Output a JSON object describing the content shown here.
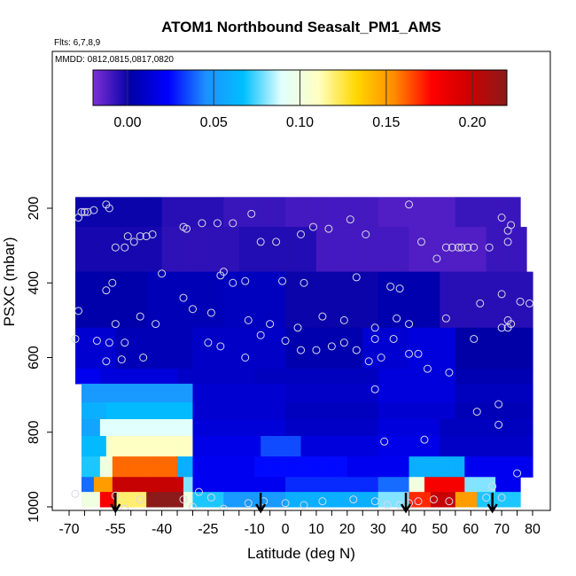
{
  "chart_data": {
    "type": "heatmap",
    "title": "ATOM1 Northbound Seasalt_PM1_AMS",
    "subtitle_flights": "Flts: 6,7,8,9",
    "subtitle_dates": "MMDD: 0812,0815,0817,0820",
    "xlabel": "Latitude (deg N)",
    "ylabel": "PSXC (mbar)",
    "xlim": [
      -70,
      80
    ],
    "ylim": [
      1000,
      100
    ],
    "x_tick_labels": [
      "-70",
      "-55",
      "-40",
      "-25",
      "-10",
      "0",
      "10",
      "20",
      "30",
      "40",
      "50",
      "60",
      "70",
      "80"
    ],
    "x_tick_values": [
      -70,
      -55,
      -40,
      -25,
      -10,
      0,
      10,
      20,
      30,
      40,
      50,
      60,
      70,
      80
    ],
    "x_minor_tick_step": 5,
    "y_tick_labels": [
      "200",
      "400",
      "600",
      "800",
      "1000"
    ],
    "y_tick_values": [
      200,
      400,
      600,
      800,
      1000
    ],
    "colorbar": {
      "range": [
        -0.02,
        0.22
      ],
      "tick_labels": [
        "0.00",
        "0.05",
        "0.10",
        "0.15",
        "0.20"
      ],
      "tick_values": [
        0.0,
        0.05,
        0.1,
        0.15,
        0.2
      ],
      "colors": [
        "#7f2fd6",
        "#0000a6",
        "#0000ff",
        "#1e90ff",
        "#00bfff",
        "#e0ffff",
        "#ffffc0",
        "#ffd700",
        "#ff8c00",
        "#ff0000",
        "#cd0000",
        "#8b1a1a"
      ]
    },
    "layers": [
      {
        "p_top": 170,
        "p_bot": 250,
        "x0": -68,
        "x1": 76,
        "segments": [
          [
            -68,
            -40,
            0.0
          ],
          [
            -40,
            -20,
            -0.005
          ],
          [
            -20,
            0,
            -0.008
          ],
          [
            0,
            30,
            -0.01
          ],
          [
            30,
            55,
            -0.012
          ],
          [
            55,
            76,
            -0.008
          ]
        ]
      },
      {
        "p_top": 250,
        "p_bot": 370,
        "x0": -68,
        "x1": 78,
        "segments": [
          [
            -68,
            -40,
            -0.002
          ],
          [
            -40,
            -15,
            -0.006
          ],
          [
            -15,
            10,
            -0.004
          ],
          [
            10,
            40,
            -0.01
          ],
          [
            40,
            65,
            -0.012
          ],
          [
            65,
            78,
            -0.008
          ]
        ]
      },
      {
        "p_top": 370,
        "p_bot": 520,
        "x0": -68,
        "x1": 80,
        "segments": [
          [
            -68,
            -45,
            0.003
          ],
          [
            -45,
            -20,
            0.006
          ],
          [
            -20,
            0,
            0.008
          ],
          [
            0,
            30,
            0.0
          ],
          [
            30,
            50,
            0.004
          ],
          [
            50,
            80,
            -0.005
          ]
        ]
      },
      {
        "p_top": 520,
        "p_bot": 630,
        "x0": -68,
        "x1": 80,
        "segments": [
          [
            -68,
            -55,
            0.012
          ],
          [
            -55,
            -30,
            0.006
          ],
          [
            -30,
            0,
            0.01
          ],
          [
            0,
            25,
            0.004
          ],
          [
            25,
            40,
            0.012
          ],
          [
            40,
            55,
            0.015
          ],
          [
            55,
            80,
            0.002
          ]
        ]
      },
      {
        "p_top": 630,
        "p_bot": 670,
        "x0": -68,
        "x1": 80,
        "segments": [
          [
            -68,
            -60,
            0.02
          ],
          [
            -60,
            -35,
            0.015
          ],
          [
            -35,
            -10,
            0.01
          ],
          [
            -10,
            30,
            0.008
          ],
          [
            30,
            55,
            0.015
          ],
          [
            55,
            80,
            0.005
          ]
        ]
      },
      {
        "p_top": 670,
        "p_bot": 720,
        "x0": -66,
        "x1": 80,
        "segments": [
          [
            -66,
            -30,
            0.05
          ],
          [
            -30,
            0,
            0.012
          ],
          [
            0,
            30,
            0.01
          ],
          [
            30,
            55,
            0.015
          ],
          [
            55,
            80,
            0.008
          ]
        ]
      },
      {
        "p_top": 720,
        "p_bot": 765,
        "x0": -66,
        "x1": 80,
        "segments": [
          [
            -66,
            -58,
            0.06
          ],
          [
            -58,
            -30,
            0.065
          ],
          [
            -30,
            0,
            0.012
          ],
          [
            0,
            30,
            0.008
          ],
          [
            30,
            55,
            0.012
          ],
          [
            55,
            80,
            0.006
          ]
        ]
      },
      {
        "p_top": 765,
        "p_bot": 810,
        "x0": -66,
        "x1": 80,
        "segments": [
          [
            -66,
            -60,
            0.055
          ],
          [
            -60,
            -30,
            0.09
          ],
          [
            -30,
            0,
            0.014
          ],
          [
            0,
            30,
            0.01
          ],
          [
            30,
            50,
            0.015
          ],
          [
            50,
            80,
            0.008
          ]
        ]
      },
      {
        "p_top": 810,
        "p_bot": 865,
        "x0": -66,
        "x1": 80,
        "segments": [
          [
            -66,
            -58,
            0.065
          ],
          [
            -58,
            -30,
            0.11
          ],
          [
            -30,
            -8,
            0.018
          ],
          [
            -8,
            5,
            0.035
          ],
          [
            5,
            30,
            0.015
          ],
          [
            30,
            50,
            0.018
          ],
          [
            50,
            80,
            0.01
          ]
        ]
      },
      {
        "p_top": 865,
        "p_bot": 920,
        "x0": -66,
        "x1": 80,
        "segments": [
          [
            -66,
            -60,
            0.07
          ],
          [
            -60,
            -56,
            0.1
          ],
          [
            -56,
            -35,
            0.16
          ],
          [
            -35,
            -30,
            0.06
          ],
          [
            -30,
            -10,
            0.02
          ],
          [
            -10,
            20,
            0.025
          ],
          [
            20,
            40,
            0.02
          ],
          [
            40,
            58,
            0.06
          ],
          [
            58,
            80,
            0.02
          ]
        ]
      },
      {
        "p_top": 920,
        "p_bot": 960,
        "x0": -66,
        "x1": 76,
        "segments": [
          [
            -66,
            -62,
            0.04
          ],
          [
            -62,
            -56,
            0.15
          ],
          [
            -56,
            -33,
            0.2
          ],
          [
            -33,
            -30,
            0.08
          ],
          [
            -30,
            0,
            0.02
          ],
          [
            0,
            30,
            0.03
          ],
          [
            30,
            40,
            0.04
          ],
          [
            40,
            45,
            0.1
          ],
          [
            45,
            58,
            0.18
          ],
          [
            58,
            68,
            0.08
          ],
          [
            68,
            76,
            0.02
          ]
        ]
      },
      {
        "p_top": 960,
        "p_bot": 1000,
        "x0": -66,
        "x1": 76,
        "segments": [
          [
            -66,
            -60,
            0.1
          ],
          [
            -60,
            -55,
            0.18
          ],
          [
            -55,
            -45,
            0.12
          ],
          [
            -45,
            -33,
            0.22
          ],
          [
            -33,
            -30,
            0.1
          ],
          [
            -30,
            -20,
            0.07
          ],
          [
            -20,
            0,
            0.05
          ],
          [
            0,
            30,
            0.06
          ],
          [
            30,
            40,
            0.08
          ],
          [
            40,
            47,
            0.17
          ],
          [
            47,
            55,
            0.2
          ],
          [
            55,
            62,
            0.15
          ],
          [
            62,
            76,
            0.07
          ]
        ]
      }
    ],
    "point_symbols": [
      [
        -67,
        225
      ],
      [
        -66,
        210
      ],
      [
        -65,
        210
      ],
      [
        -64,
        210
      ],
      [
        -62,
        205
      ],
      [
        -58,
        190
      ],
      [
        -57,
        200
      ],
      [
        -51,
        275
      ],
      [
        -49,
        290
      ],
      [
        -47,
        275
      ],
      [
        -45,
        275
      ],
      [
        -43,
        270
      ],
      [
        -55,
        305
      ],
      [
        -52,
        305
      ],
      [
        -33,
        250
      ],
      [
        -32,
        255
      ],
      [
        -27,
        240
      ],
      [
        -22,
        240
      ],
      [
        -17,
        240
      ],
      [
        -11,
        215
      ],
      [
        -8,
        290
      ],
      [
        -3,
        290
      ],
      [
        5,
        270
      ],
      [
        9,
        250
      ],
      [
        14,
        255
      ],
      [
        21,
        230
      ],
      [
        26,
        270
      ],
      [
        40,
        190
      ],
      [
        44,
        290
      ],
      [
        49,
        335
      ],
      [
        52,
        305
      ],
      [
        54,
        305
      ],
      [
        56,
        305
      ],
      [
        57,
        305
      ],
      [
        59,
        305
      ],
      [
        61,
        305
      ],
      [
        66,
        305
      ],
      [
        70,
        225
      ],
      [
        72,
        260
      ],
      [
        73,
        245
      ],
      [
        72,
        290
      ],
      [
        -56,
        400
      ],
      [
        -58,
        420
      ],
      [
        -40,
        375
      ],
      [
        -20,
        370
      ],
      [
        -21,
        380
      ],
      [
        -17,
        400
      ],
      [
        -13,
        395
      ],
      [
        -1,
        395
      ],
      [
        6,
        400
      ],
      [
        23,
        385
      ],
      [
        34,
        410
      ],
      [
        37,
        415
      ],
      [
        -47,
        490
      ],
      [
        -42,
        510
      ],
      [
        -33,
        440
      ],
      [
        -30,
        470
      ],
      [
        -24,
        480
      ],
      [
        -12,
        500
      ],
      [
        -5,
        510
      ],
      [
        4,
        520
      ],
      [
        12,
        490
      ],
      [
        19,
        500
      ],
      [
        29,
        520
      ],
      [
        36,
        495
      ],
      [
        52,
        495
      ],
      [
        63,
        455
      ],
      [
        70,
        430
      ],
      [
        76,
        450
      ],
      [
        79,
        455
      ],
      [
        -55,
        510
      ],
      [
        -57,
        560
      ],
      [
        -52,
        560
      ],
      [
        -46,
        600
      ],
      [
        -25,
        560
      ],
      [
        -21,
        570
      ],
      [
        -13,
        600
      ],
      [
        -8,
        540
      ],
      [
        0,
        555
      ],
      [
        5,
        580
      ],
      [
        10,
        580
      ],
      [
        15,
        570
      ],
      [
        19,
        560
      ],
      [
        23,
        580
      ],
      [
        29,
        550
      ],
      [
        35,
        550
      ],
      [
        40,
        590
      ],
      [
        43,
        590
      ],
      [
        46,
        630
      ],
      [
        61,
        550
      ],
      [
        72,
        500
      ],
      [
        73,
        510
      ],
      [
        70,
        520
      ],
      [
        72,
        520
      ],
      [
        -67,
        475
      ],
      [
        -68,
        550
      ],
      [
        -58,
        610
      ],
      [
        -53,
        605
      ],
      [
        27,
        610
      ],
      [
        31,
        600
      ],
      [
        29,
        685
      ],
      [
        40,
        510
      ],
      [
        53,
        640
      ],
      [
        62,
        745
      ],
      [
        69,
        725
      ],
      [
        69,
        780
      ],
      [
        75,
        910
      ],
      [
        -61,
        555
      ],
      [
        45,
        820
      ],
      [
        32,
        825
      ],
      [
        -68,
        965
      ],
      [
        -55,
        970
      ],
      [
        -47,
        980
      ],
      [
        -33,
        980
      ],
      [
        -28,
        960
      ],
      [
        -24,
        975
      ],
      [
        -12,
        990
      ],
      [
        -7,
        985
      ],
      [
        0,
        990
      ],
      [
        6,
        995
      ],
      [
        12,
        985
      ],
      [
        22,
        980
      ],
      [
        29,
        985
      ],
      [
        33,
        995
      ],
      [
        37,
        995
      ],
      [
        40,
        990
      ],
      [
        43,
        985
      ],
      [
        48,
        980
      ],
      [
        53,
        985
      ],
      [
        65,
        975
      ],
      [
        70,
        975
      ],
      [
        -52,
        1005
      ],
      [
        -30,
        1000
      ],
      [
        -20,
        1005
      ],
      [
        67,
        945
      ]
    ],
    "flight_arrows_lat": [
      -55,
      -8,
      39,
      67
    ]
  }
}
